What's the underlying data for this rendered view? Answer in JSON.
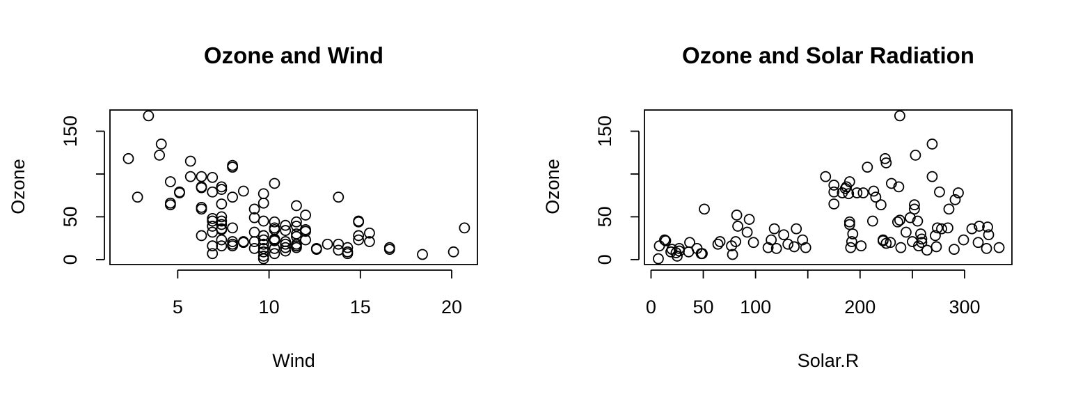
{
  "chart_data": [
    {
      "type": "scatter",
      "title": "Ozone and Wind",
      "xlabel": "Wind",
      "ylabel": "Ozone",
      "xlim": [
        1.29,
        21.41
      ],
      "ylim": [
        -5.8,
        174.8
      ],
      "xticks": [
        5,
        10,
        15,
        20
      ],
      "yticks": [
        0,
        50,
        150
      ],
      "yticks_minor": [
        100
      ],
      "grid": false,
      "points": [
        [
          2.3,
          118
        ],
        [
          2.8,
          73
        ],
        [
          3.4,
          168
        ],
        [
          4.0,
          122
        ],
        [
          4.1,
          135
        ],
        [
          4.6,
          91
        ],
        [
          4.6,
          66
        ],
        [
          4.6,
          64
        ],
        [
          5.1,
          78
        ],
        [
          5.1,
          79
        ],
        [
          5.7,
          115
        ],
        [
          5.7,
          97
        ],
        [
          6.3,
          97
        ],
        [
          6.3,
          85
        ],
        [
          6.3,
          84
        ],
        [
          6.3,
          61
        ],
        [
          6.3,
          59
        ],
        [
          6.3,
          28
        ],
        [
          6.9,
          96
        ],
        [
          6.9,
          79
        ],
        [
          6.9,
          48
        ],
        [
          6.9,
          45
        ],
        [
          6.9,
          39
        ],
        [
          6.9,
          32
        ],
        [
          6.9,
          16
        ],
        [
          6.9,
          7
        ],
        [
          7.4,
          85
        ],
        [
          7.4,
          82
        ],
        [
          7.4,
          65
        ],
        [
          7.4,
          50
        ],
        [
          7.4,
          45
        ],
        [
          7.4,
          41
        ],
        [
          7.4,
          36
        ],
        [
          7.4,
          35
        ],
        [
          7.4,
          23
        ],
        [
          7.4,
          16
        ],
        [
          8.0,
          110
        ],
        [
          8.0,
          108
        ],
        [
          8.0,
          73
        ],
        [
          8.0,
          37
        ],
        [
          8.0,
          21
        ],
        [
          8.0,
          18
        ],
        [
          8.0,
          16
        ],
        [
          8.6,
          80
        ],
        [
          8.6,
          21
        ],
        [
          8.6,
          20
        ],
        [
          9.2,
          59
        ],
        [
          9.2,
          49
        ],
        [
          9.2,
          32
        ],
        [
          9.2,
          21
        ],
        [
          9.2,
          13
        ],
        [
          9.7,
          77
        ],
        [
          9.7,
          66
        ],
        [
          9.7,
          45
        ],
        [
          9.7,
          28
        ],
        [
          9.7,
          23
        ],
        [
          9.7,
          18
        ],
        [
          9.7,
          13
        ],
        [
          9.7,
          9
        ],
        [
          9.7,
          4
        ],
        [
          9.7,
          1
        ],
        [
          10.3,
          89
        ],
        [
          10.3,
          44
        ],
        [
          10.3,
          37
        ],
        [
          10.3,
          35
        ],
        [
          10.3,
          24
        ],
        [
          10.3,
          23
        ],
        [
          10.3,
          22
        ],
        [
          10.3,
          13
        ],
        [
          10.3,
          7
        ],
        [
          10.9,
          40
        ],
        [
          10.9,
          34
        ],
        [
          10.9,
          21
        ],
        [
          10.9,
          18
        ],
        [
          10.9,
          14
        ],
        [
          10.9,
          10
        ],
        [
          11.5,
          63
        ],
        [
          11.5,
          44
        ],
        [
          11.5,
          39
        ],
        [
          11.5,
          30
        ],
        [
          11.5,
          27
        ],
        [
          11.5,
          18
        ],
        [
          11.5,
          16
        ],
        [
          11.5,
          14
        ],
        [
          12.0,
          52
        ],
        [
          12.0,
          35
        ],
        [
          12.0,
          33
        ],
        [
          12.0,
          23
        ],
        [
          12.6,
          13
        ],
        [
          12.6,
          12
        ],
        [
          13.2,
          18
        ],
        [
          13.8,
          73
        ],
        [
          13.8,
          18
        ],
        [
          13.8,
          11
        ],
        [
          14.3,
          14
        ],
        [
          14.3,
          9
        ],
        [
          14.3,
          7
        ],
        [
          14.9,
          45
        ],
        [
          14.9,
          44
        ],
        [
          14.9,
          28
        ],
        [
          14.9,
          23
        ],
        [
          15.5,
          31
        ],
        [
          15.5,
          21
        ],
        [
          16.6,
          14
        ],
        [
          16.6,
          12
        ],
        [
          18.4,
          6
        ],
        [
          20.1,
          9
        ],
        [
          20.7,
          37
        ]
      ]
    },
    {
      "type": "scatter",
      "title": "Ozone and Solar Radiation",
      "xlabel": "Solar.R",
      "ylabel": "Ozone",
      "xlim": [
        -6.28,
        345.28
      ],
      "ylim": [
        -5.8,
        174.8
      ],
      "xticks": [
        0,
        50,
        100,
        200,
        300
      ],
      "xticks_minor": [
        150,
        250
      ],
      "yticks": [
        0,
        50,
        150
      ],
      "yticks_minor": [
        100
      ],
      "grid": false,
      "points": [
        [
          7,
          1
        ],
        [
          8,
          16
        ],
        [
          13,
          23
        ],
        [
          14,
          22
        ],
        [
          19,
          9
        ],
        [
          20,
          12
        ],
        [
          24,
          8
        ],
        [
          25,
          4
        ],
        [
          27,
          13
        ],
        [
          27,
          10
        ],
        [
          36,
          9
        ],
        [
          37,
          20
        ],
        [
          44,
          13
        ],
        [
          48,
          7
        ],
        [
          49,
          7
        ],
        [
          51,
          59
        ],
        [
          64,
          18
        ],
        [
          66,
          21
        ],
        [
          77,
          16
        ],
        [
          78,
          6
        ],
        [
          81,
          21
        ],
        [
          82,
          52
        ],
        [
          83,
          39
        ],
        [
          92,
          32
        ],
        [
          94,
          47
        ],
        [
          98,
          20
        ],
        [
          112,
          14
        ],
        [
          115,
          23
        ],
        [
          118,
          36
        ],
        [
          120,
          13
        ],
        [
          127,
          29
        ],
        [
          131,
          18
        ],
        [
          137,
          15
        ],
        [
          139,
          36
        ],
        [
          145,
          23
        ],
        [
          148,
          14
        ],
        [
          167,
          97
        ],
        [
          175,
          65
        ],
        [
          175,
          79
        ],
        [
          175,
          87
        ],
        [
          183,
          78
        ],
        [
          186,
          83
        ],
        [
          187,
          85
        ],
        [
          189,
          77
        ],
        [
          190,
          44
        ],
        [
          190,
          41
        ],
        [
          190,
          91
        ],
        [
          191,
          14
        ],
        [
          192,
          21
        ],
        [
          193,
          30
        ],
        [
          197,
          78
        ],
        [
          201,
          16
        ],
        [
          203,
          78
        ],
        [
          207,
          108
        ],
        [
          212,
          45
        ],
        [
          213,
          80
        ],
        [
          215,
          73
        ],
        [
          220,
          64
        ],
        [
          222,
          23
        ],
        [
          222,
          22
        ],
        [
          224,
          118
        ],
        [
          225,
          19
        ],
        [
          225,
          113
        ],
        [
          229,
          20
        ],
        [
          230,
          89
        ],
        [
          236,
          44
        ],
        [
          237,
          85
        ],
        [
          238,
          46
        ],
        [
          238,
          168
        ],
        [
          239,
          14
        ],
        [
          244,
          32
        ],
        [
          248,
          49
        ],
        [
          250,
          21
        ],
        [
          252,
          64
        ],
        [
          252,
          59
        ],
        [
          253,
          122
        ],
        [
          255,
          45
        ],
        [
          256,
          16
        ],
        [
          258,
          30
        ],
        [
          259,
          24
        ],
        [
          259,
          20
        ],
        [
          264,
          11
        ],
        [
          269,
          135
        ],
        [
          269,
          97
        ],
        [
          272,
          28
        ],
        [
          273,
          15
        ],
        [
          274,
          37
        ],
        [
          276,
          79
        ],
        [
          278,
          36
        ],
        [
          284,
          37
        ],
        [
          285,
          59
        ],
        [
          290,
          12
        ],
        [
          291,
          70
        ],
        [
          294,
          78
        ],
        [
          299,
          23
        ],
        [
          307,
          36
        ],
        [
          313,
          20
        ],
        [
          314,
          39
        ],
        [
          321,
          13
        ],
        [
          322,
          38
        ],
        [
          323,
          29
        ],
        [
          333,
          14
        ]
      ]
    }
  ]
}
